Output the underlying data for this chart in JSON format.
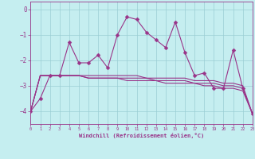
{
  "xlabel": "Windchill (Refroidissement éolien,°C)",
  "background_color": "#c5eef0",
  "grid_color": "#9acdd4",
  "line_color": "#993388",
  "x": [
    0,
    1,
    2,
    3,
    4,
    5,
    6,
    7,
    8,
    9,
    10,
    11,
    12,
    13,
    14,
    15,
    16,
    17,
    18,
    19,
    20,
    21,
    22,
    23
  ],
  "series1": [
    -4.0,
    -3.5,
    -2.6,
    -2.6,
    -1.3,
    -2.1,
    -2.1,
    -1.8,
    -2.3,
    -1.0,
    -0.3,
    -0.4,
    -0.9,
    -1.2,
    -1.5,
    -0.5,
    -1.7,
    -2.6,
    -2.5,
    -3.1,
    -3.1,
    -1.6,
    -3.1,
    -4.1
  ],
  "series2": [
    -4.0,
    -2.6,
    -2.6,
    -2.6,
    -2.6,
    -2.6,
    -2.6,
    -2.6,
    -2.6,
    -2.6,
    -2.6,
    -2.6,
    -2.7,
    -2.7,
    -2.7,
    -2.7,
    -2.7,
    -2.8,
    -2.8,
    -2.8,
    -2.9,
    -2.9,
    -3.0,
    -4.1
  ],
  "series3": [
    -4.0,
    -2.6,
    -2.6,
    -2.6,
    -2.6,
    -2.6,
    -2.7,
    -2.7,
    -2.7,
    -2.7,
    -2.7,
    -2.7,
    -2.7,
    -2.8,
    -2.8,
    -2.8,
    -2.8,
    -2.9,
    -2.9,
    -2.9,
    -3.0,
    -3.0,
    -3.1,
    -4.1
  ],
  "series4": [
    -4.0,
    -2.6,
    -2.6,
    -2.6,
    -2.6,
    -2.6,
    -2.7,
    -2.7,
    -2.7,
    -2.7,
    -2.8,
    -2.8,
    -2.8,
    -2.8,
    -2.9,
    -2.9,
    -2.9,
    -2.9,
    -3.0,
    -3.0,
    -3.1,
    -3.1,
    -3.2,
    -4.1
  ],
  "ylim": [
    -4.5,
    0.3
  ],
  "xlim": [
    0,
    23
  ],
  "yticks": [
    0,
    -1,
    -2,
    -3,
    -4
  ],
  "xticks": [
    0,
    1,
    2,
    3,
    4,
    5,
    6,
    7,
    8,
    9,
    10,
    11,
    12,
    13,
    14,
    15,
    16,
    17,
    18,
    19,
    20,
    21,
    22,
    23
  ],
  "markersize": 2.5,
  "linewidth": 0.8
}
